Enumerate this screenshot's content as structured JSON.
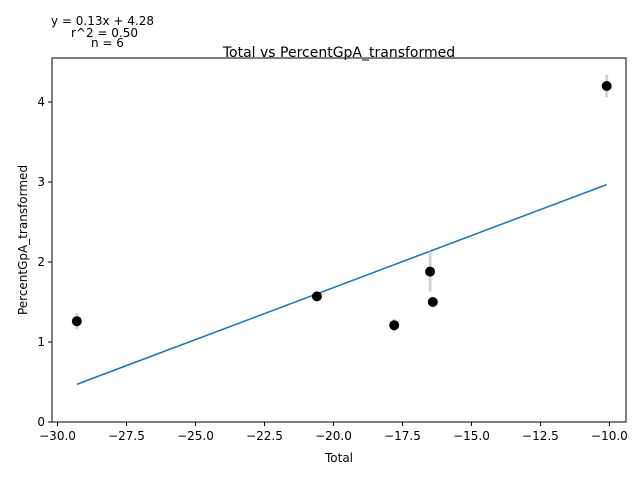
{
  "chart_data": {
    "type": "scatter",
    "title": "Total vs PercentGpA_transformed",
    "xlabel": "Total",
    "ylabel": "PercentGpA_transformed",
    "xlim": [
      -30.2,
      -9.4
    ],
    "ylim": [
      0,
      4.55
    ],
    "x_ticks": [
      -30.0,
      -27.5,
      -25.0,
      -22.5,
      -20.0,
      -17.5,
      -15.0,
      -12.5,
      -10.0
    ],
    "x_tick_labels": [
      "−30.0",
      "−27.5",
      "−25.0",
      "−22.5",
      "−20.0",
      "−17.5",
      "−15.0",
      "−12.5",
      "−10.0"
    ],
    "y_ticks": [
      0,
      1,
      2,
      3,
      4
    ],
    "y_tick_labels": [
      "0",
      "1",
      "2",
      "3",
      "4"
    ],
    "grid": false,
    "points": [
      {
        "x": -29.3,
        "y": 1.26,
        "yerr": 0.1
      },
      {
        "x": -20.6,
        "y": 1.57,
        "yerr": 0.05
      },
      {
        "x": -17.8,
        "y": 1.21,
        "yerr": 0.08
      },
      {
        "x": -16.5,
        "y": 1.88,
        "yerr": 0.25
      },
      {
        "x": -16.4,
        "y": 1.5,
        "yerr": 0.04
      },
      {
        "x": -10.1,
        "y": 4.2,
        "yerr": 0.14
      }
    ],
    "fit_line": {
      "slope": 0.13,
      "intercept": 4.28,
      "x_range": [
        -29.3,
        -10.1
      ]
    },
    "annotations": {
      "equation": "y = 0.13x + 4.28",
      "r2": "r^2 = 0.50",
      "n": "n = 6"
    },
    "colors": {
      "points": "#000000",
      "errorbars": "#d3d3d3",
      "fit_line": "#1f77b4",
      "axes": "#000000"
    }
  }
}
